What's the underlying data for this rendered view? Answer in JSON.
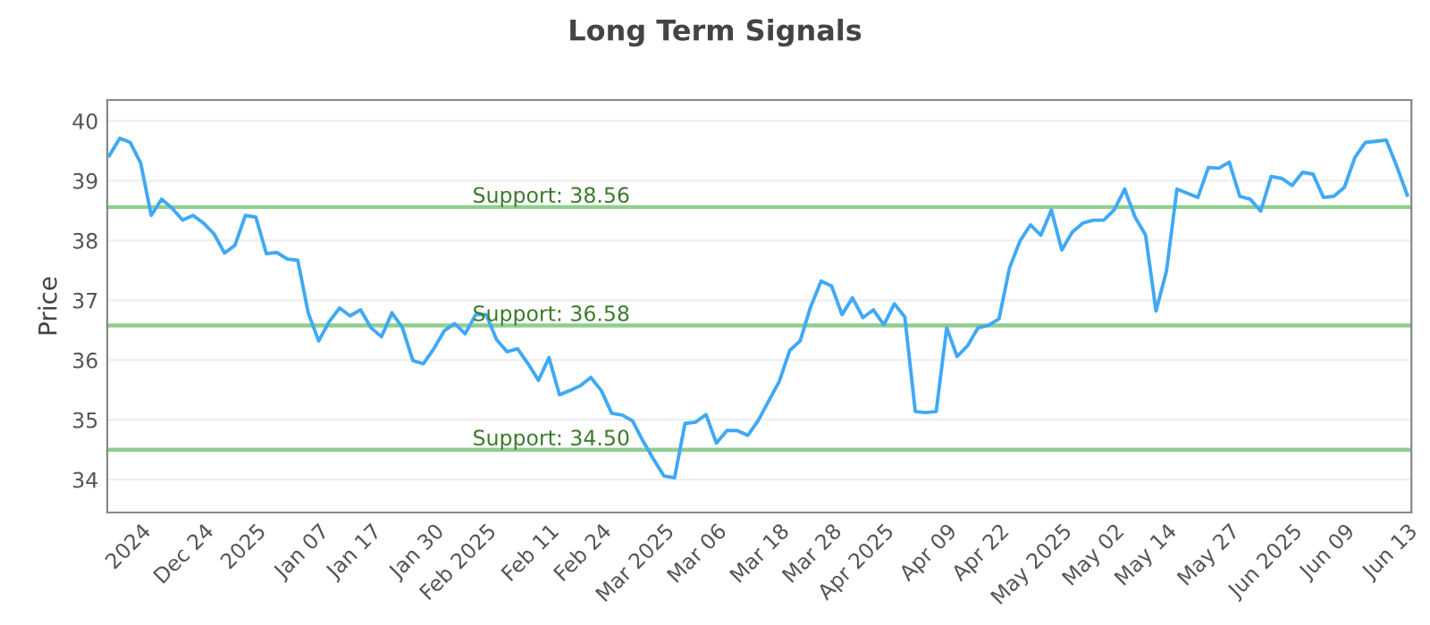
{
  "chart_data": {
    "type": "line",
    "title": "Long Term Signals",
    "ylabel": "Price",
    "categories": [
      null,
      null,
      null,
      "2024",
      null,
      null,
      null,
      null,
      null,
      "Dec 24",
      null,
      null,
      null,
      null,
      "2025",
      null,
      null,
      null,
      null,
      null,
      "Jan 07",
      null,
      null,
      null,
      null,
      "Jan 17",
      null,
      null,
      null,
      null,
      null,
      "Jan 30",
      null,
      null,
      null,
      null,
      "Feb 2025",
      null,
      null,
      null,
      null,
      null,
      "Feb 11",
      null,
      null,
      null,
      null,
      "Feb 24",
      null,
      null,
      null,
      null,
      null,
      "Mar 2025",
      null,
      null,
      null,
      null,
      "Mar 06",
      null,
      null,
      null,
      null,
      null,
      "Mar 18",
      null,
      null,
      null,
      null,
      "Mar 28",
      null,
      null,
      null,
      null,
      "Apr 2025",
      null,
      null,
      null,
      null,
      null,
      "Apr 09",
      null,
      null,
      null,
      null,
      "Apr 22",
      null,
      null,
      null,
      null,
      null,
      "May 2025",
      null,
      null,
      null,
      null,
      "May 02",
      null,
      null,
      null,
      null,
      "May 14",
      null,
      null,
      null,
      null,
      null,
      "May 27",
      null,
      null,
      null,
      null,
      null,
      "Jun 2025",
      null,
      null,
      null,
      null,
      "Jun 09",
      null,
      null,
      null,
      null,
      null,
      "Jun 13"
    ],
    "series": [
      {
        "color": "#3fa9f5",
        "values": [
          39.42,
          39.71,
          39.64,
          39.29,
          38.42,
          38.69,
          38.54,
          38.34,
          38.42,
          38.29,
          38.11,
          37.79,
          37.92,
          38.42,
          38.39,
          37.78,
          37.8,
          37.69,
          37.67,
          36.79,
          36.32,
          36.64,
          36.87,
          36.74,
          36.84,
          36.54,
          36.39,
          36.79,
          36.54,
          35.99,
          35.94,
          36.19,
          36.49,
          36.61,
          36.44,
          36.76,
          36.76,
          36.34,
          36.14,
          36.19,
          35.94,
          35.66,
          36.04,
          35.42,
          35.49,
          35.57,
          35.71,
          35.49,
          35.11,
          35.08,
          34.98,
          34.64,
          34.34,
          34.06,
          34.03,
          34.94,
          34.96,
          35.09,
          34.61,
          34.82,
          34.82,
          34.74,
          34.99,
          35.32,
          35.64,
          36.16,
          36.32,
          36.89,
          37.32,
          37.24,
          36.76,
          37.04,
          36.71,
          36.84,
          36.59,
          36.94,
          36.72,
          35.14,
          35.12,
          35.14,
          36.54,
          36.06,
          36.24,
          36.54,
          36.58,
          36.69,
          37.54,
          37.99,
          38.26,
          38.09,
          38.51,
          37.84,
          38.14,
          38.29,
          38.34,
          38.34,
          38.51,
          38.86,
          38.39,
          38.09,
          36.82,
          37.49,
          38.86,
          38.79,
          38.72,
          39.22,
          39.21,
          39.31,
          38.74,
          38.69,
          38.49,
          39.07,
          39.04,
          38.92,
          39.14,
          39.11,
          38.72,
          38.74,
          38.89,
          39.39,
          39.64,
          39.66,
          39.68,
          39.24,
          38.76
        ]
      }
    ],
    "ylim": [
      33.45,
      40.35
    ],
    "yticks": [
      34,
      35,
      36,
      37,
      38,
      39,
      40
    ],
    "grid": "y",
    "legend": false,
    "marker": "none",
    "line_style": "solid",
    "ref_lines": [
      {
        "axis": "y",
        "value": 38.56,
        "label": "Support: 38.56",
        "color": "#8fce8f"
      },
      {
        "axis": "y",
        "value": 36.58,
        "label": "Support: 36.58",
        "color": "#8fce8f"
      },
      {
        "axis": "y",
        "value": 34.5,
        "label": "Support: 34.50",
        "color": "#8fce8f"
      }
    ]
  }
}
